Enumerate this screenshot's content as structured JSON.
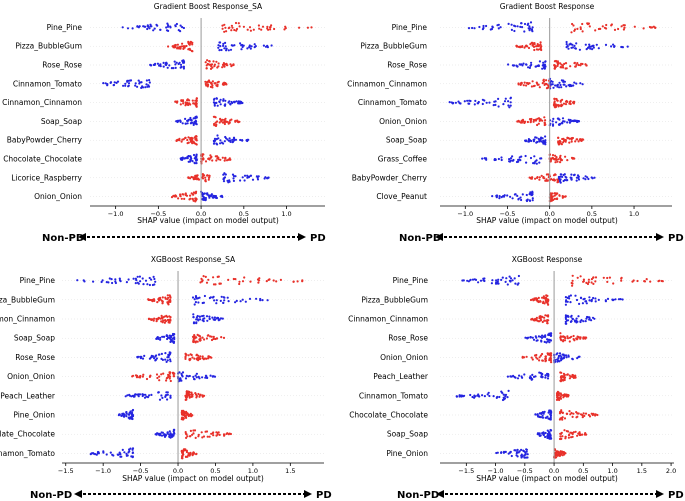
{
  "colors": {
    "positive": "#e8312a",
    "negative": "#2424e0",
    "axis": "#000000",
    "zeroline": "#999999",
    "arrow": "#000000"
  },
  "figure": {
    "direction_left": "Non-PD",
    "direction_right": "PD"
  },
  "chart_data": [
    {
      "type": "scatter",
      "title": "Gradient Boost Response_SA",
      "xlabel": "SHAP value (impact on model output)",
      "xlim": [
        -1.3,
        1.45
      ],
      "xticks": [
        -1.0,
        -0.5,
        0.0,
        0.5,
        1.0
      ],
      "xtick_labels": [
        "−1.0",
        "−0.5",
        "0.0",
        "0.5",
        "1.0"
      ],
      "features": [
        {
          "name": "Pine_Pine",
          "negative_range": [
            -0.95,
            -0.2
          ],
          "positive_range": [
            0.25,
            1.3
          ]
        },
        {
          "name": "Pizza_BubbleGum",
          "negative_range": [
            0.2,
            0.85
          ],
          "positive_range": [
            -0.4,
            -0.1
          ]
        },
        {
          "name": "Rose_Rose",
          "negative_range": [
            -0.6,
            -0.2
          ],
          "positive_range": [
            0.05,
            0.4
          ]
        },
        {
          "name": "Cinnamon_Tomato",
          "negative_range": [
            -1.2,
            -0.6
          ],
          "positive_range": [
            0.05,
            0.3
          ]
        },
        {
          "name": "Cinnamon_Cinnamon",
          "negative_range": [
            0.15,
            0.5
          ],
          "positive_range": [
            -0.35,
            -0.05
          ]
        },
        {
          "name": "Soap_Soap",
          "negative_range": [
            -0.3,
            -0.05
          ],
          "positive_range": [
            0.15,
            0.45
          ]
        },
        {
          "name": "BabyPowder_Cherry",
          "negative_range": [
            0.15,
            0.6
          ],
          "positive_range": [
            -0.3,
            -0.05
          ]
        },
        {
          "name": "Chocolate_Chocolate",
          "negative_range": [
            -0.25,
            -0.05
          ],
          "positive_range": [
            0.0,
            0.38
          ]
        },
        {
          "name": "Licorice_Raspberry",
          "negative_range": [
            0.25,
            0.8
          ],
          "positive_range": [
            -0.15,
            0.1
          ]
        },
        {
          "name": "Onion_Onion",
          "negative_range": [
            0.0,
            0.25
          ],
          "positive_range": [
            -0.35,
            -0.05
          ]
        }
      ]
    },
    {
      "type": "scatter",
      "title": "Gradient Boost Response",
      "xlabel": "SHAP value (impact on model output)",
      "xlim": [
        -1.3,
        1.45
      ],
      "xticks": [
        -1.0,
        -0.5,
        0.0,
        0.5,
        1.0
      ],
      "xtick_labels": [
        "−1.0",
        "−0.5",
        "0.0",
        "0.5",
        "1.0"
      ],
      "features": [
        {
          "name": "Pine_Pine",
          "negative_range": [
            -1.0,
            -0.2
          ],
          "positive_range": [
            0.25,
            1.3
          ]
        },
        {
          "name": "Pizza_BubbleGum",
          "negative_range": [
            0.2,
            0.95
          ],
          "positive_range": [
            -0.4,
            -0.1
          ]
        },
        {
          "name": "Rose_Rose",
          "negative_range": [
            -0.5,
            -0.05
          ],
          "positive_range": [
            0.05,
            0.45
          ]
        },
        {
          "name": "Cinnamon_Cinnamon",
          "negative_range": [
            0.0,
            0.4
          ],
          "positive_range": [
            -0.4,
            0.0
          ]
        },
        {
          "name": "Cinnamon_Tomato",
          "negative_range": [
            -1.2,
            -0.45
          ],
          "positive_range": [
            0.05,
            0.3
          ]
        },
        {
          "name": "Onion_Onion",
          "negative_range": [
            0.0,
            0.35
          ],
          "positive_range": [
            -0.4,
            -0.05
          ]
        },
        {
          "name": "Soap_Soap",
          "negative_range": [
            -0.3,
            -0.05
          ],
          "positive_range": [
            0.1,
            0.4
          ]
        },
        {
          "name": "Grass_Coffee",
          "negative_range": [
            -0.8,
            -0.1
          ],
          "positive_range": [
            0.0,
            0.3
          ]
        },
        {
          "name": "BabyPowder_Cherry",
          "negative_range": [
            0.1,
            0.55
          ],
          "positive_range": [
            -0.25,
            0.1
          ]
        },
        {
          "name": "Clove_Peanut",
          "negative_range": [
            -0.7,
            -0.2
          ],
          "positive_range": [
            0.0,
            0.2
          ]
        }
      ]
    },
    {
      "type": "scatter",
      "title": "XGBoost Response_SA",
      "xlabel": "SHAP value (impact on model output)",
      "xlim": [
        -1.55,
        1.95
      ],
      "xticks": [
        -1.5,
        -1.0,
        -0.5,
        0.0,
        0.5,
        1.0,
        1.5
      ],
      "xtick_labels": [
        "−1.5",
        "−1.0",
        "−0.5",
        "0.0",
        "0.5",
        "1.0",
        "1.5"
      ],
      "features": [
        {
          "name": "Pine_Pine",
          "negative_range": [
            -1.35,
            -0.3
          ],
          "positive_range": [
            0.3,
            1.75
          ]
        },
        {
          "name": "Pizza_BubbleGum",
          "negative_range": [
            0.2,
            1.2
          ],
          "positive_range": [
            -0.4,
            -0.1
          ]
        },
        {
          "name": "Cinnamon_Cinnamon",
          "negative_range": [
            0.2,
            0.6
          ],
          "positive_range": [
            -0.4,
            -0.1
          ]
        },
        {
          "name": "Soap_Soap",
          "negative_range": [
            -0.3,
            -0.05
          ],
          "positive_range": [
            0.2,
            0.65
          ]
        },
        {
          "name": "Rose_Rose",
          "negative_range": [
            -0.55,
            -0.1
          ],
          "positive_range": [
            0.1,
            0.45
          ]
        },
        {
          "name": "Onion_Onion",
          "negative_range": [
            0.0,
            0.5
          ],
          "positive_range": [
            -0.65,
            -0.05
          ]
        },
        {
          "name": "Peach_Leather",
          "negative_range": [
            -0.7,
            -0.1
          ],
          "positive_range": [
            0.1,
            0.35
          ]
        },
        {
          "name": "Pine_Onion",
          "negative_range": [
            -0.8,
            -0.6
          ],
          "positive_range": [
            0.05,
            0.2
          ]
        },
        {
          "name": "Chocolate_Chocolate",
          "negative_range": [
            -0.3,
            -0.05
          ],
          "positive_range": [
            0.1,
            0.75
          ]
        },
        {
          "name": "Cinnamon_Tomato",
          "negative_range": [
            -1.2,
            -0.6
          ],
          "positive_range": [
            0.05,
            0.25
          ]
        }
      ]
    },
    {
      "type": "scatter",
      "title": "XGBoost Response",
      "xlabel": "SHAP value (impact on model output)",
      "xlim": [
        -1.95,
        2.05
      ],
      "xticks": [
        -1.5,
        -1.0,
        -0.5,
        0.0,
        0.5,
        1.0,
        1.5,
        2.0
      ],
      "xtick_labels": [
        "−1.5",
        "−1.0",
        "−0.5",
        "0.0",
        "0.5",
        "1.0",
        "1.5",
        "2.0"
      ],
      "features": [
        {
          "name": "Pine_Pine",
          "negative_range": [
            -1.6,
            -0.6
          ],
          "positive_range": [
            0.3,
            1.95
          ]
        },
        {
          "name": "Pizza_BubbleGum",
          "negative_range": [
            0.2,
            1.2
          ],
          "positive_range": [
            -0.4,
            -0.1
          ]
        },
        {
          "name": "Cinnamon_Cinnamon",
          "negative_range": [
            0.2,
            0.75
          ],
          "positive_range": [
            -0.4,
            -0.1
          ]
        },
        {
          "name": "Rose_Rose",
          "negative_range": [
            -0.5,
            -0.05
          ],
          "positive_range": [
            0.1,
            0.55
          ]
        },
        {
          "name": "Onion_Onion",
          "negative_range": [
            0.0,
            0.45
          ],
          "positive_range": [
            -0.55,
            -0.05
          ]
        },
        {
          "name": "Peach_Leather",
          "negative_range": [
            -0.8,
            -0.1
          ],
          "positive_range": [
            0.1,
            0.4
          ]
        },
        {
          "name": "Cinnamon_Tomato",
          "negative_range": [
            -1.7,
            -0.75
          ],
          "positive_range": [
            0.05,
            0.25
          ]
        },
        {
          "name": "Chocolate_Chocolate",
          "negative_range": [
            -0.35,
            -0.05
          ],
          "positive_range": [
            0.1,
            0.75
          ]
        },
        {
          "name": "Soap_Soap",
          "negative_range": [
            -0.3,
            -0.05
          ],
          "positive_range": [
            0.1,
            0.6
          ]
        },
        {
          "name": "Pine_Onion",
          "negative_range": [
            -1.0,
            -0.45
          ],
          "positive_range": [
            0.0,
            0.2
          ]
        }
      ]
    }
  ]
}
